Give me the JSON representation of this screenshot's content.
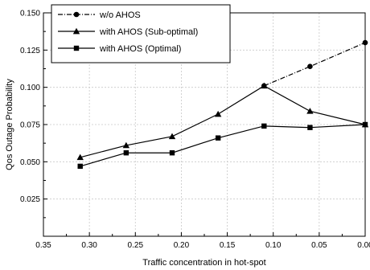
{
  "chart_data": {
    "type": "line",
    "xlabel": "Traffic concentration in hot-spot",
    "ylabel": "Qos Outage Probability",
    "xlim": [
      0.35,
      0.0
    ],
    "ylim": [
      0.0,
      0.15
    ],
    "x_reversed": true,
    "grid": true,
    "legend_position": "top-left",
    "x_ticks": [
      0.35,
      0.3,
      0.25,
      0.2,
      0.15,
      0.1,
      0.05,
      0.0
    ],
    "x_tick_labels": [
      "0.35",
      "0.30",
      "0.25",
      "0.20",
      "0.15",
      "0.10",
      "0.05",
      "0.00"
    ],
    "y_ticks": [
      0.025,
      0.05,
      0.075,
      0.1,
      0.125,
      0.15
    ],
    "y_tick_labels": [
      "0.025",
      "0.050",
      "0.075",
      "0.100",
      "0.125",
      "0.150"
    ],
    "series": [
      {
        "name": "w/o AHOS",
        "marker": "circle",
        "line_style": "dash-dot",
        "x": [
          0.11,
          0.06,
          0.0
        ],
        "y": [
          0.101,
          0.114,
          0.13
        ]
      },
      {
        "name": "with AHOS (Sub-optimal)",
        "marker": "triangle",
        "line_style": "solid",
        "x": [
          0.31,
          0.26,
          0.21,
          0.16,
          0.11,
          0.06,
          0.0
        ],
        "y": [
          0.053,
          0.061,
          0.067,
          0.082,
          0.101,
          0.084,
          0.075
        ]
      },
      {
        "name": "with AHOS (Optimal)",
        "marker": "square",
        "line_style": "solid",
        "x": [
          0.31,
          0.26,
          0.21,
          0.16,
          0.11,
          0.06,
          0.0
        ],
        "y": [
          0.047,
          0.056,
          0.056,
          0.066,
          0.074,
          0.073,
          0.075
        ]
      }
    ]
  }
}
